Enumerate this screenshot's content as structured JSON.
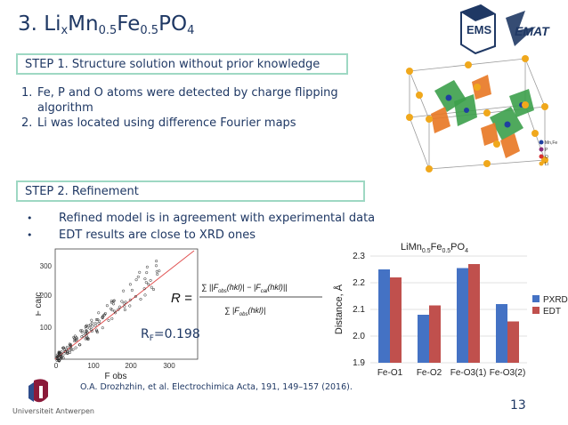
{
  "slide": {
    "title_main": "3. Li",
    "title_sub1": "x",
    "title_mid": "Mn",
    "title_sub2": "0.5",
    "title_fe": "Fe",
    "title_sub3": "0.5",
    "title_end": "PO",
    "title_sub4": "4",
    "page_number": "13",
    "citation": "O.A. Drozhzhin, et al. Electrochimica Acta, 191, 149–157 (2016).",
    "university": "Universiteit Antwerpen",
    "logo_emat": "EMAT",
    "logo_ems": "EMS"
  },
  "step1": {
    "label": "STEP 1. Structure solution without prior knowledge",
    "items": [
      {
        "num": "1.",
        "text": "Fe, P and O atoms were detected by charge flipping algorithm"
      },
      {
        "num": "2.",
        "text": "Li was located using difference Fourier maps"
      }
    ]
  },
  "step2": {
    "label": "STEP 2. Refinement",
    "bullets": [
      {
        "dot": "•",
        "text": "Refined model is in agreement with experimental data"
      },
      {
        "dot": "•",
        "text": "EDT results are close to XRD ones"
      }
    ]
  },
  "crystal_legend": [
    "Mn,Fe",
    "P",
    "O",
    "Li"
  ],
  "formula": {
    "lhs": "R =",
    "rf_label": "R",
    "rf_sub": "F",
    "rf_value": "=0.198"
  },
  "scatter": {
    "xlabel": "F obs",
    "ylabel": "F calc",
    "xticks": [
      "0",
      "100",
      "200",
      "300"
    ],
    "yticks": [
      "100",
      "200",
      "300"
    ]
  },
  "chart_data": {
    "type": "bar",
    "title": "LiMn0.5Fe0.5PO4",
    "ylabel": "Distance, Å",
    "categories": [
      "Fe-O1",
      "Fe-O2",
      "Fe-O3(1)",
      "Fe-O3(2)"
    ],
    "ylim": [
      1.9,
      2.3
    ],
    "yticks": [
      "1.9",
      "2.0",
      "2.1",
      "2.2",
      "2.3"
    ],
    "series": [
      {
        "name": "PXRD",
        "color": "#4472c4",
        "values": [
          2.25,
          2.08,
          2.255,
          2.12
        ]
      },
      {
        "name": "EDT",
        "color": "#c0504d",
        "values": [
          2.22,
          2.115,
          2.27,
          2.055
        ]
      }
    ],
    "legend": "right"
  }
}
